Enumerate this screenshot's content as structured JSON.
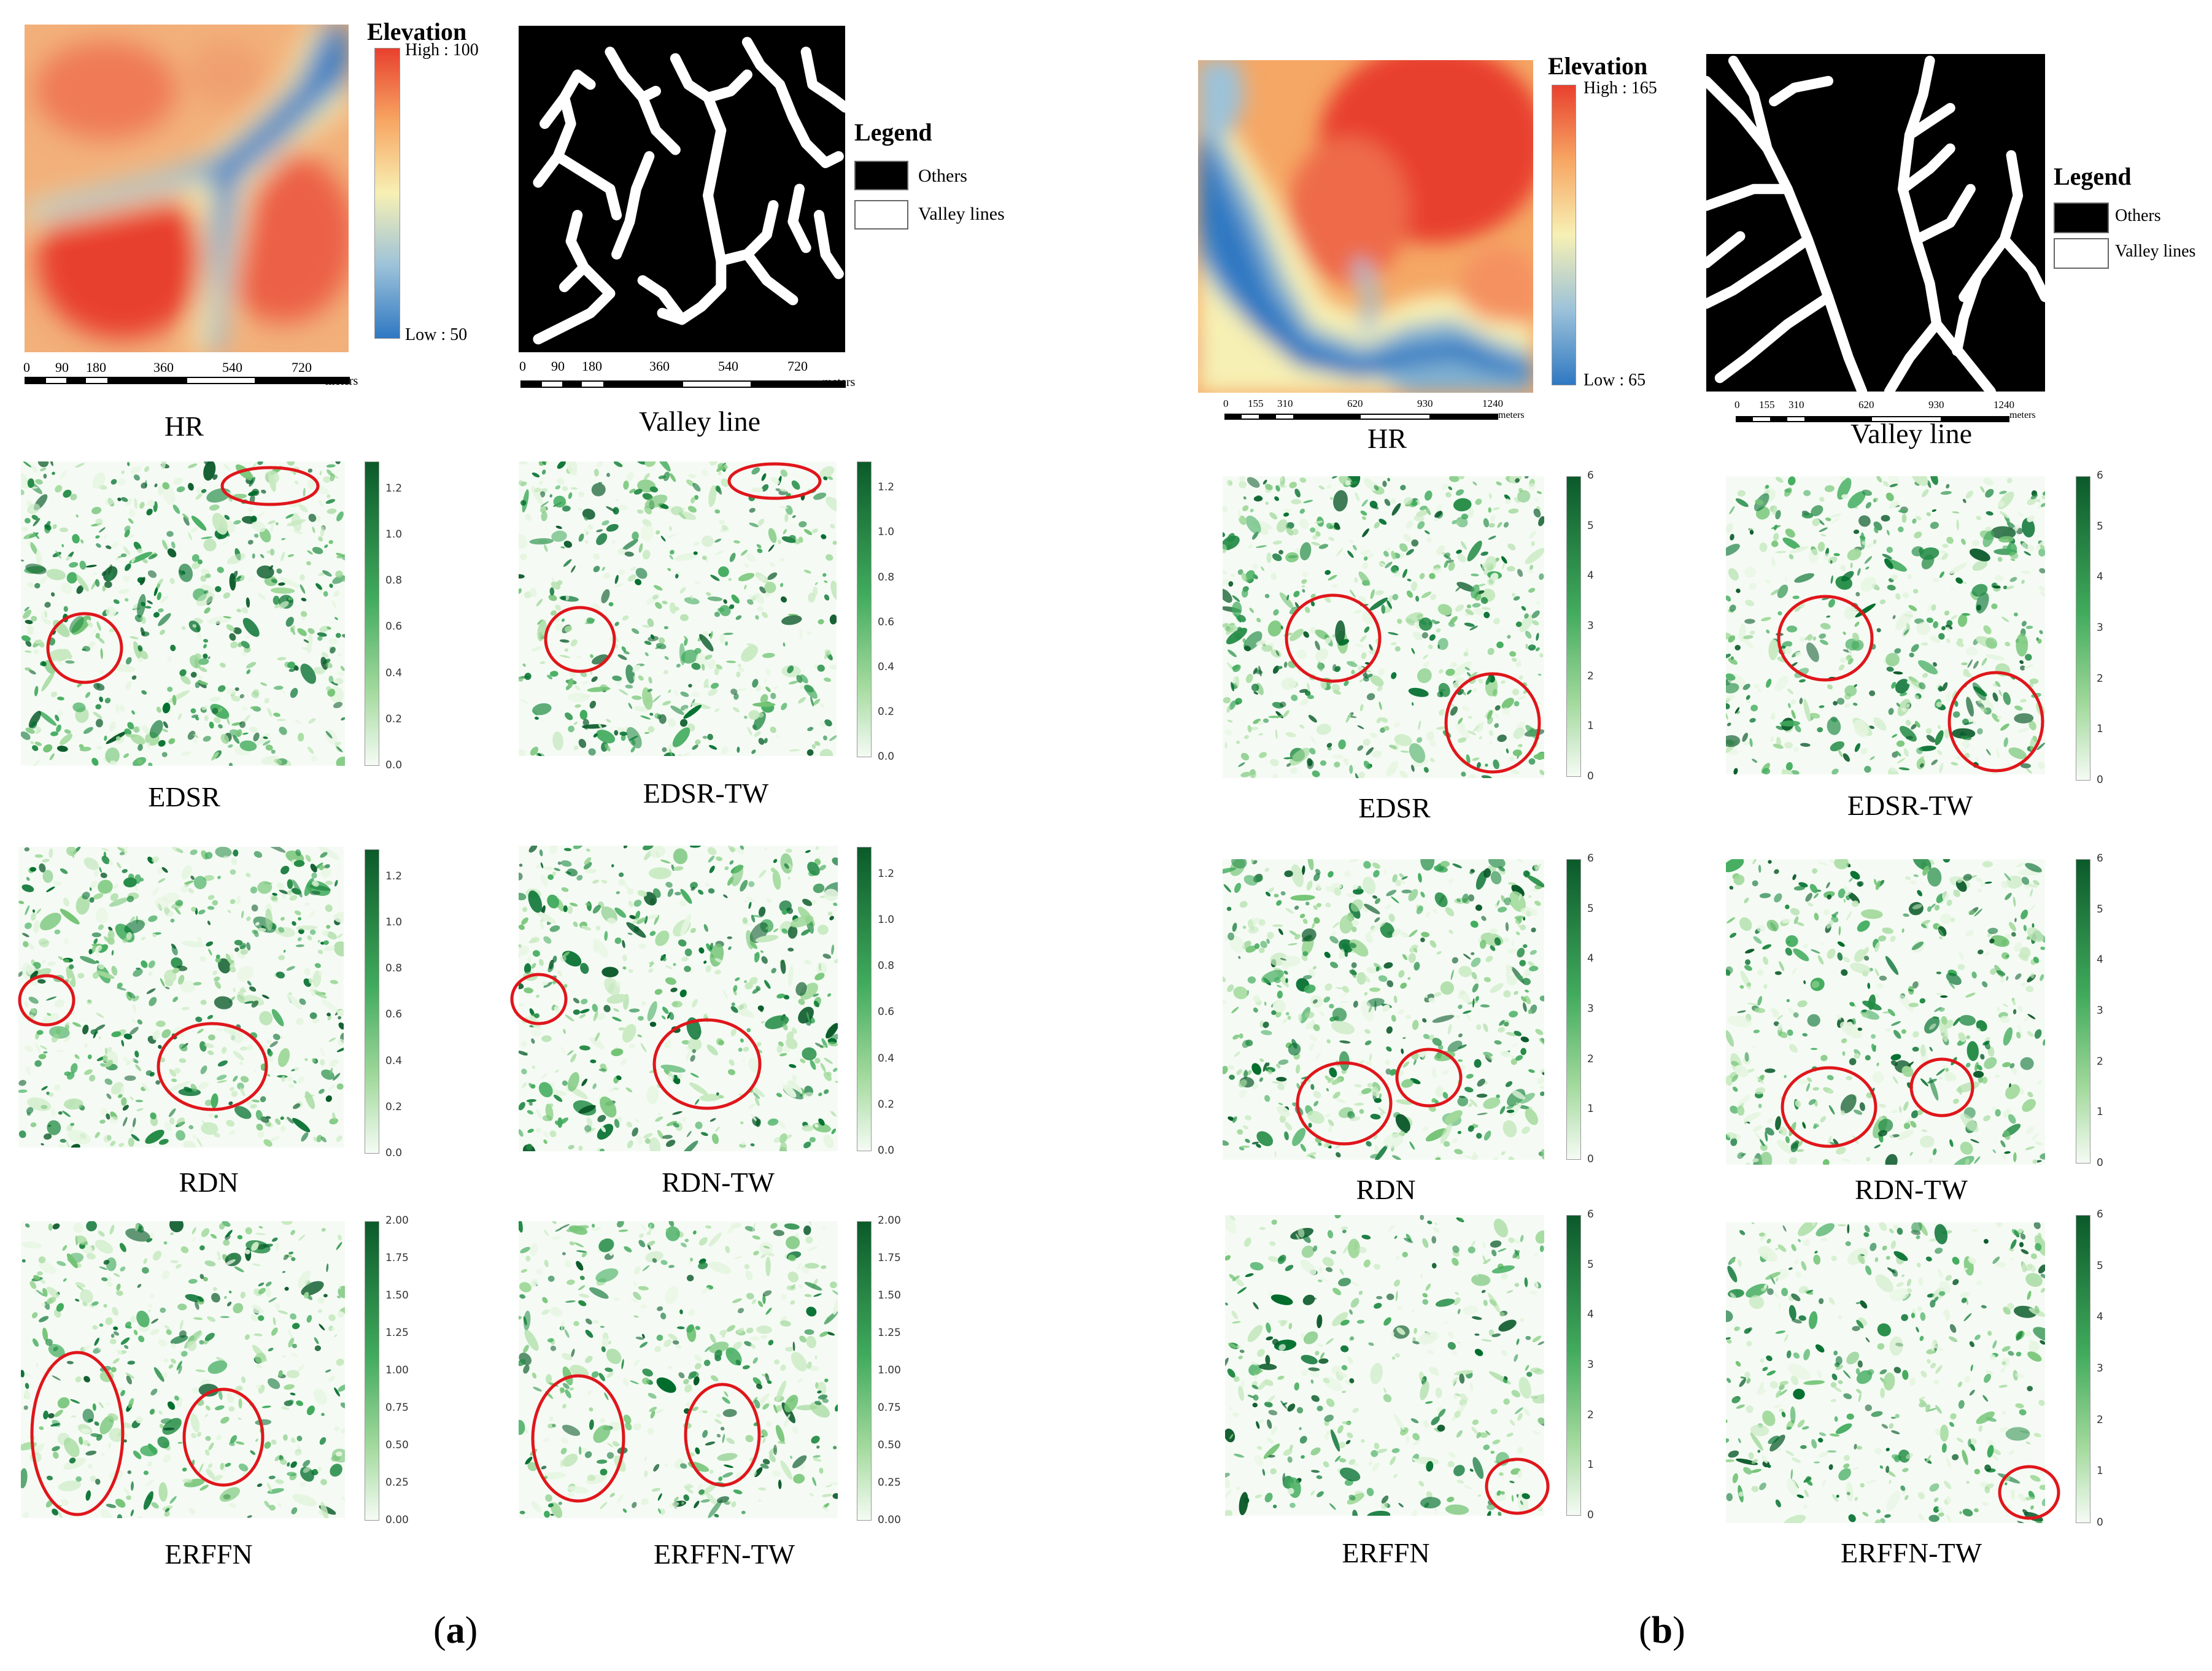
{
  "panel_a": {
    "letter": "a",
    "elevation": {
      "title": "Elevation",
      "high": "High : 100",
      "low": "Low : 50"
    },
    "legend": {
      "title": "Legend",
      "others": "Others",
      "valley": "Valley lines"
    },
    "scale": {
      "ticks": [
        "0",
        "90",
        "180",
        "360",
        "540",
        "720"
      ],
      "unit": "meters"
    },
    "captions": {
      "hr": "HR",
      "valley": "Valley line",
      "edsr": "EDSR",
      "edsr_tw": "EDSR-TW",
      "rdn": "RDN",
      "rdn_tw": "RDN-TW",
      "erffn": "ERFFN",
      "erffn_tw": "ERFFN-TW"
    },
    "colorbars": {
      "edsr": [
        "1.2",
        "1.0",
        "0.8",
        "0.6",
        "0.4",
        "0.2",
        "0.0"
      ],
      "edsr_tw": [
        "1.2",
        "1.0",
        "0.8",
        "0.6",
        "0.4",
        "0.2",
        "0.0"
      ],
      "rdn": [
        "1.2",
        "1.0",
        "0.8",
        "0.6",
        "0.4",
        "0.2",
        "0.0"
      ],
      "rdn_tw": [
        "1.2",
        "1.0",
        "0.8",
        "0.6",
        "0.4",
        "0.2",
        "0.0"
      ],
      "erffn": [
        "2.00",
        "1.75",
        "1.50",
        "1.25",
        "1.00",
        "0.75",
        "0.50",
        "0.25",
        "0.00"
      ],
      "erffn_tw": [
        "2.00",
        "1.75",
        "1.50",
        "1.25",
        "1.00",
        "0.75",
        "0.50",
        "0.25",
        "0.00"
      ]
    }
  },
  "panel_b": {
    "letter": "b",
    "elevation": {
      "title": "Elevation",
      "high": "High : 165",
      "low": "Low : 65"
    },
    "legend": {
      "title": "Legend",
      "others": "Others",
      "valley": "Valley lines"
    },
    "scale": {
      "ticks": [
        "0",
        "155",
        "310",
        "620",
        "930",
        "1240"
      ],
      "unit": "meters"
    },
    "captions": {
      "hr": "HR",
      "valley": "Valley line",
      "edsr": "EDSR",
      "edsr_tw": "EDSR-TW",
      "rdn": "RDN",
      "rdn_tw": "RDN-TW",
      "erffn": "ERFFN",
      "erffn_tw": "ERFFN-TW"
    },
    "colorbars": {
      "edsr": [
        "6",
        "5",
        "4",
        "3",
        "2",
        "1",
        "0"
      ],
      "edsr_tw": [
        "6",
        "5",
        "4",
        "3",
        "2",
        "1",
        "0"
      ],
      "rdn": [
        "6",
        "5",
        "4",
        "3",
        "2",
        "1",
        "0"
      ],
      "rdn_tw": [
        "6",
        "5",
        "4",
        "3",
        "2",
        "1",
        "0"
      ],
      "erffn": [
        "6",
        "5",
        "4",
        "3",
        "2",
        "1",
        "0"
      ],
      "erffn_tw": [
        "6",
        "5",
        "4",
        "3",
        "2",
        "1",
        "0"
      ]
    }
  },
  "colors": {
    "elev_high": "#e8402e",
    "elev_mid": "#f7f0b4",
    "elev_low": "#2f78c2",
    "error_max": "#0b5a2a",
    "error_min": "#f5fbf4",
    "circle": "#e0161b"
  }
}
